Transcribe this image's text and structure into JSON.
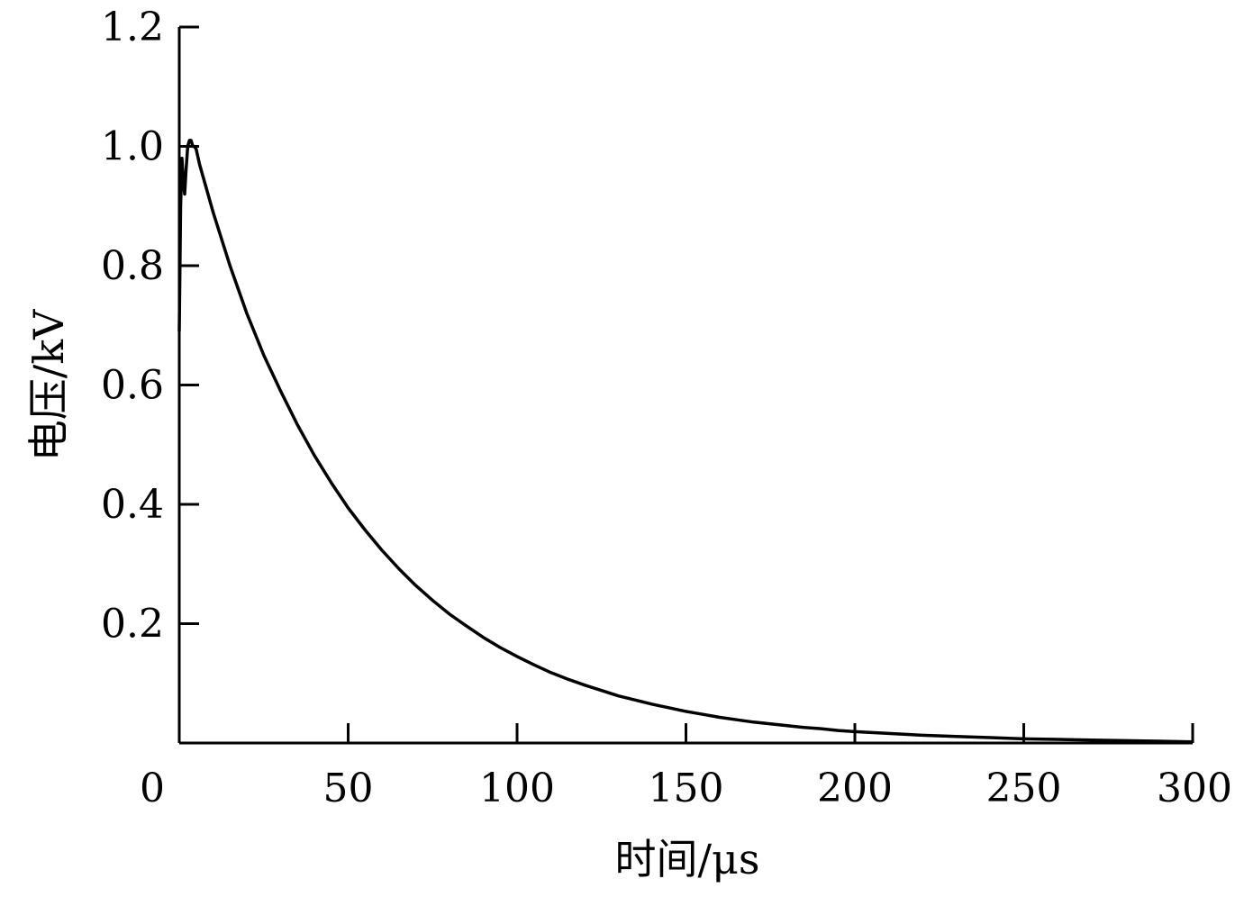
{
  "chart_data": {
    "type": "line",
    "xlabel": "时间/μs",
    "ylabel": "电压/kV",
    "xlim": [
      0,
      300
    ],
    "ylim": [
      0,
      1.2
    ],
    "x_ticks": [
      0,
      50,
      100,
      150,
      200,
      250,
      300
    ],
    "x_tick_labels": [
      "0",
      "50",
      "100",
      "150",
      "200",
      "250",
      "300"
    ],
    "y_ticks": [
      0.2,
      0.4,
      0.6,
      0.8,
      1.0,
      1.2
    ],
    "y_tick_labels": [
      "0.2",
      "0.4",
      "0.6",
      "0.8",
      "1.0",
      "1.2"
    ],
    "grid": false,
    "legend": "none",
    "series": [
      {
        "color": "#000000",
        "x": [
          0,
          0.4,
          0.8,
          1.2,
          1.6,
          2.0,
          2.5,
          3,
          3.5,
          4,
          4.5,
          5,
          6,
          8,
          10,
          15,
          20,
          25,
          30,
          35,
          40,
          45,
          50,
          55,
          60,
          65,
          70,
          75,
          80,
          85,
          90,
          95,
          100,
          105,
          110,
          115,
          120,
          125,
          130,
          135,
          140,
          145,
          150,
          155,
          160,
          165,
          170,
          175,
          180,
          185,
          190,
          195,
          200,
          210,
          220,
          230,
          240,
          250,
          260,
          270,
          280,
          290,
          300
        ],
        "y": [
          0.69,
          0.9,
          0.98,
          0.94,
          0.92,
          0.96,
          1.0,
          1.01,
          1.01,
          1.0,
          1.0,
          0.995,
          0.97,
          0.93,
          0.89,
          0.8,
          0.72,
          0.65,
          0.59,
          0.533,
          0.482,
          0.436,
          0.394,
          0.357,
          0.323,
          0.292,
          0.264,
          0.239,
          0.216,
          0.196,
          0.177,
          0.16,
          0.145,
          0.131,
          0.118,
          0.107,
          0.097,
          0.088,
          0.079,
          0.072,
          0.065,
          0.059,
          0.053,
          0.048,
          0.043,
          0.039,
          0.035,
          0.032,
          0.029,
          0.026,
          0.024,
          0.021,
          0.019,
          0.016,
          0.013,
          0.011,
          0.009,
          0.007,
          0.006,
          0.005,
          0.004,
          0.003,
          0.002
        ]
      }
    ]
  }
}
